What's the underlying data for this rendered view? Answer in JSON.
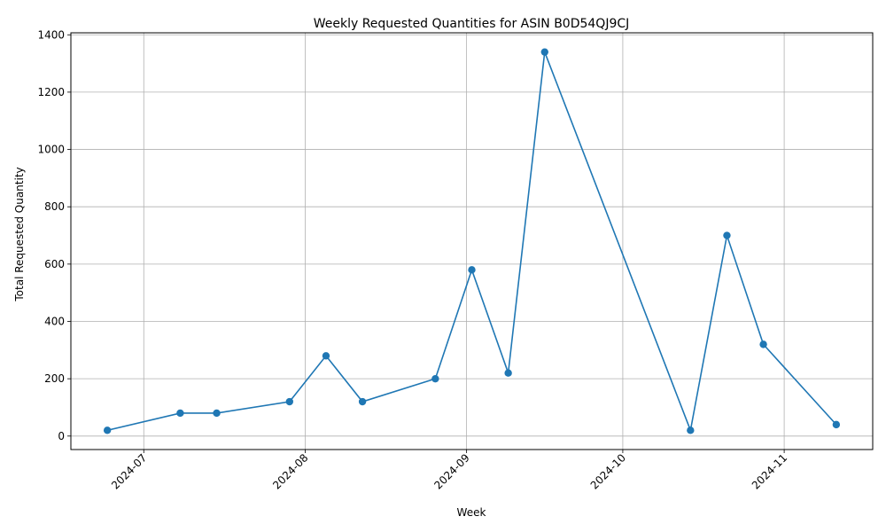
{
  "chart_data": {
    "type": "line",
    "title": "Weekly Requested Quantities for ASIN B0D54QJ9CJ",
    "xlabel": "Week",
    "ylabel": "Total Requested Quantity",
    "x": [
      "2024-06-24",
      "2024-07-08",
      "2024-07-15",
      "2024-07-29",
      "2024-08-05",
      "2024-08-12",
      "2024-08-26",
      "2024-09-02",
      "2024-09-09",
      "2024-09-16",
      "2024-10-14",
      "2024-10-21",
      "2024-10-28",
      "2024-11-11"
    ],
    "series": [
      {
        "values": [
          20,
          80,
          80,
          120,
          280,
          120,
          200,
          580,
          220,
          1340,
          20,
          700,
          320,
          40
        ]
      }
    ],
    "xticks": [
      "2024-07-01",
      "2024-08-01",
      "2024-09-01",
      "2024-10-01",
      "2024-11-01"
    ],
    "xtick_labels": [
      "2024-07",
      "2024-08",
      "2024-09",
      "2024-10",
      "2024-11"
    ],
    "yticks": [
      0,
      200,
      400,
      600,
      800,
      1000,
      1200,
      1400
    ],
    "xlim": [
      "2024-06-17",
      "2024-11-18"
    ],
    "ylim": [
      -47,
      1407
    ],
    "grid": true,
    "colors": {
      "line": "#1f77b4",
      "marker": "#1f77b4",
      "grid": "#b0b0b0",
      "axes": "#000000"
    }
  }
}
